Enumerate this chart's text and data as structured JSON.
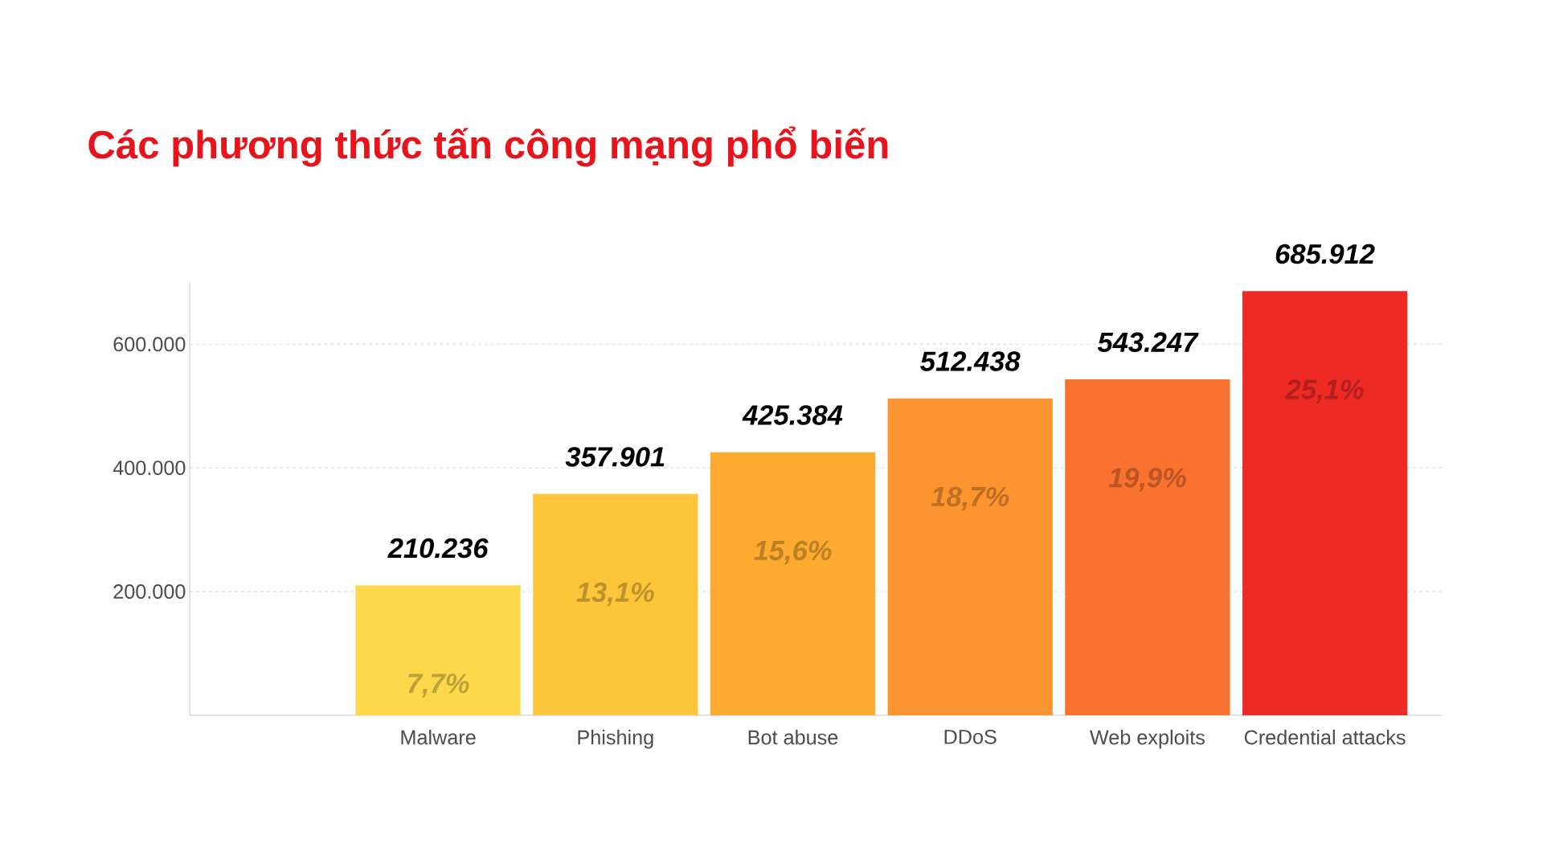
{
  "chart_data": {
    "type": "bar",
    "title": "Các phương thức tấn công mạng phổ biến",
    "categories": [
      "Malware",
      "Phishing",
      "Bot abuse",
      "DDoS",
      "Web exploits",
      "Credential attacks"
    ],
    "values": [
      210236,
      357901,
      425384,
      512438,
      543247,
      685912
    ],
    "value_labels": [
      "210.236",
      "357.901",
      "425.384",
      "512.438",
      "543.247",
      "685.912"
    ],
    "colors": [
      "#fcd84a",
      "#fcc53a",
      "#fdab30",
      "#fc9530",
      "#f97230",
      "#ee2a26"
    ],
    "ylim": [
      0,
      700000
    ],
    "yticks": [
      {
        "value": 200000,
        "label": "200.000"
      },
      {
        "value": 400000,
        "label": "400.000"
      },
      {
        "value": 600000,
        "label": "600.000"
      }
    ],
    "grid": "y",
    "annotations": [
      "7,7%",
      "13,1%",
      "15,6%",
      "18,7%",
      "19,9%",
      "25,1%"
    ]
  }
}
